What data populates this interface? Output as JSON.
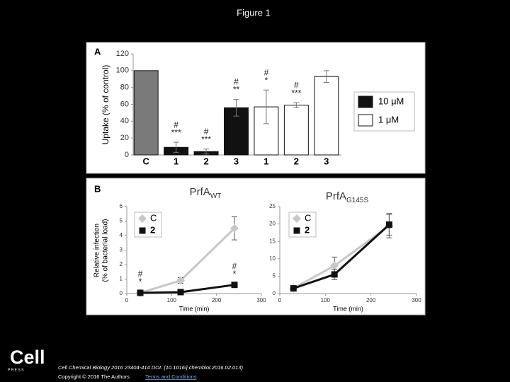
{
  "slide_title": "Figure 1",
  "chart_data": [
    {
      "type": "bar",
      "panel": "A",
      "ylabel": "Uptake (% of control)",
      "categories": [
        "C",
        "1",
        "2",
        "3",
        "1",
        "2",
        "3"
      ],
      "ylim": [
        0,
        120
      ],
      "yticks": [
        0,
        20,
        40,
        60,
        80,
        100,
        120
      ],
      "series": [
        {
          "color": "#7a7a7a",
          "values": [
            100,
            null,
            null,
            null,
            null,
            null,
            null
          ],
          "errors": [
            0,
            null,
            null,
            null,
            null,
            null,
            null
          ]
        },
        {
          "name": "10 μM",
          "color": "#111111",
          "values": [
            null,
            9,
            4,
            56,
            null,
            null,
            null
          ],
          "errors": [
            null,
            6,
            3,
            10,
            null,
            null,
            null
          ],
          "annotations": [
            null,
            [
              "#",
              "***"
            ],
            [
              "#",
              "***"
            ],
            [
              "#",
              "**"
            ],
            null,
            null,
            null
          ]
        },
        {
          "name": "1 μM",
          "color": "#ffffff",
          "values": [
            null,
            null,
            null,
            null,
            57,
            59,
            93
          ],
          "errors": [
            null,
            null,
            null,
            null,
            20,
            3,
            7
          ],
          "annotations": [
            null,
            null,
            null,
            null,
            [
              "#",
              "*"
            ],
            [
              "#",
              "***"
            ],
            null
          ]
        }
      ]
    },
    {
      "type": "line",
      "panel": "B",
      "title": "PrfA",
      "title_subscript": "WT",
      "xlabel": "Time (min)",
      "ylabel": [
        "Relative infection",
        "(% of bacterial load)"
      ],
      "x": [
        30,
        120,
        240
      ],
      "xlim": [
        0,
        300
      ],
      "xticks": [
        0,
        100,
        200,
        300
      ],
      "ylim": [
        0,
        6
      ],
      "yticks": [
        0,
        1,
        2,
        3,
        4,
        5,
        6
      ],
      "series": [
        {
          "name": "C",
          "color": "#c8c8c8",
          "marker": "diamond",
          "values": [
            0.05,
            0.9,
            4.5
          ],
          "errors": [
            0,
            0.2,
            0.8
          ]
        },
        {
          "name": "2",
          "color": "#111111",
          "marker": "square",
          "values": [
            0.05,
            0.1,
            0.6
          ],
          "errors": [
            0,
            0,
            0.05
          ],
          "annotations": [
            [
              "#",
              "*"
            ],
            null,
            [
              "#",
              "*"
            ]
          ]
        }
      ]
    },
    {
      "type": "line",
      "title": "PrfA",
      "title_subscript": "G145S",
      "xlabel": "Time (min)",
      "x": [
        30,
        120,
        240
      ],
      "xlim": [
        0,
        300
      ],
      "xticks": [
        0,
        100,
        200,
        300
      ],
      "ylim": [
        0,
        25
      ],
      "yticks": [
        0,
        5,
        10,
        15,
        20,
        25
      ],
      "series": [
        {
          "name": "C",
          "color": "#c8c8c8",
          "marker": "diamond",
          "values": [
            1.5,
            8,
            19.5
          ],
          "errors": [
            0,
            2.5,
            3.5
          ]
        },
        {
          "name": "2",
          "color": "#111111",
          "marker": "square",
          "values": [
            1.5,
            5.5,
            19.8
          ],
          "errors": [
            0,
            1.5,
            3
          ]
        }
      ]
    }
  ],
  "footer": {
    "logo": "Cell",
    "logo_sub": "P R E S S",
    "citation": "Cell Chemical Biology 2016 23404-414 DOI: (10.1016/j.chembiol.2016.02.013)",
    "copyright": "Copyright © 2016 The Authors",
    "link": "Terms and Conditions"
  }
}
